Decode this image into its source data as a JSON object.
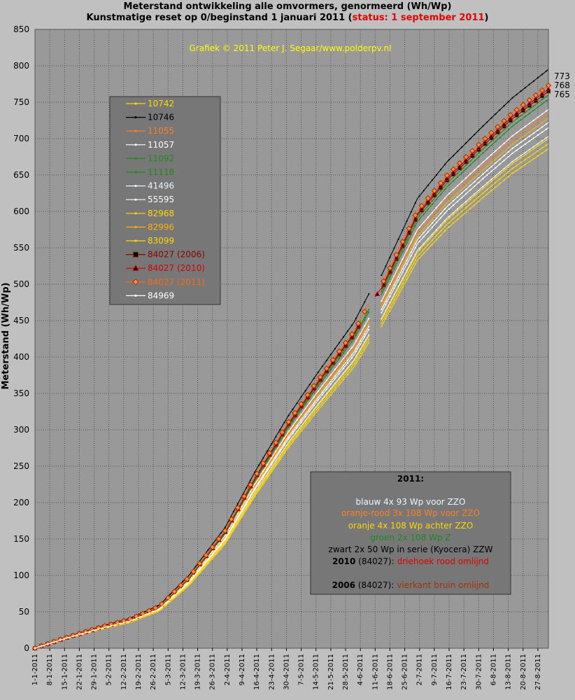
{
  "chart_data": {
    "type": "line",
    "title": "Meterstand ontwikkeling alle omvormers, genormeerd (Wh/Wp)",
    "subtitle_prefix": "Kunstmatige reset op 0/beginstand 1 januari 2011 (",
    "subtitle_status": "status: 1 september 2011",
    "subtitle_suffix": ")",
    "copyright": "Grafiek © 2011 Peter J. Segaar/www.polderpv.nl",
    "ylabel": "Meterstand (Wh/Wp)",
    "ylim": [
      0,
      850
    ],
    "yticks": [
      0,
      50,
      100,
      150,
      200,
      250,
      300,
      350,
      400,
      450,
      500,
      550,
      600,
      650,
      700,
      750,
      800,
      850
    ],
    "grid": true,
    "x_start": "2011-01-01",
    "x_end": "2011-09-01",
    "gap_start": "2011-06-08",
    "gap_end": "2011-06-14",
    "xtick_labels": [
      "1-1-2011",
      "8-1-2011",
      "15-1-2011",
      "22-1-2011",
      "29-1-2011",
      "5-2-2011",
      "12-2-2011",
      "19-2-2011",
      "26-2-2011",
      "5-3-2011",
      "12-3-2011",
      "19-3-2011",
      "26-3-2011",
      "2-4-2011",
      "9-4-2011",
      "16-4-2011",
      "23-4-2011",
      "30-4-2011",
      "7-5-2011",
      "14-5-2011",
      "21-5-2011",
      "28-5-2011",
      "4-6-2011",
      "11-6-2011",
      "18-6-2011",
      "25-6-2011",
      "2-7-2011",
      "9-7-2011",
      "16-7-2011",
      "23-7-2011",
      "30-7-2011",
      "6-8-2011",
      "13-8-2011",
      "20-8-2011",
      "27-8-2011"
    ],
    "profile": {
      "dates": [
        "2011-01-01",
        "2011-01-15",
        "2011-02-01",
        "2011-02-15",
        "2011-03-01",
        "2011-03-15",
        "2011-04-01",
        "2011-04-15",
        "2011-05-01",
        "2011-05-15",
        "2011-06-01",
        "2011-06-08",
        "2011-06-14",
        "2011-07-01",
        "2011-07-15",
        "2011-08-01",
        "2011-08-15",
        "2011-09-01"
      ],
      "values": [
        0,
        14,
        29,
        40,
        58,
        98,
        162,
        236,
        312,
        370,
        437,
        475,
        500,
        603,
        652,
        700,
        738,
        776
      ]
    },
    "series": [
      {
        "name": "10742",
        "color": "#ffd700",
        "marker": "dot",
        "final": 686
      },
      {
        "name": "10746",
        "color": "#000000",
        "marker": "dot",
        "final": 795
      },
      {
        "name": "11055",
        "color": "#ff7f27",
        "marker": "dot",
        "final": 735
      },
      {
        "name": "11057",
        "color": "#ffffff",
        "marker": "dot",
        "final": 740
      },
      {
        "name": "11092",
        "color": "#1e8a1e",
        "marker": "dot",
        "final": 754
      },
      {
        "name": "11118",
        "color": "#1e8a1e",
        "marker": "dot",
        "final": 760
      },
      {
        "name": "41496",
        "color": "#e8f4ff",
        "marker": "dot",
        "final": 703
      },
      {
        "name": "55595",
        "color": "#ffffff",
        "marker": "dot",
        "final": 715
      },
      {
        "name": "82968",
        "color": "#ffd700",
        "marker": "dot",
        "final": 693
      },
      {
        "name": "82996",
        "color": "#ffb000",
        "marker": "dot",
        "final": 728
      },
      {
        "name": "83099",
        "color": "#ffd700",
        "marker": "dot",
        "final": 700
      },
      {
        "name": "84027 (2006)",
        "color": "#8b0000",
        "marker": "square",
        "final": 765
      },
      {
        "name": "84027 (2010)",
        "color": "#d40000",
        "marker": "triangle",
        "final": 768
      },
      {
        "name": "84027 (2011)",
        "color": "#ff6a13",
        "marker": "diamond",
        "final": 773
      },
      {
        "name": "84969",
        "color": "#ffffff",
        "marker": "dot",
        "final": 722
      }
    ],
    "end_labels": [
      {
        "text": "773",
        "value": 773,
        "color": "#ff6a13"
      },
      {
        "text": "768",
        "value": 768,
        "color": "#d40000"
      },
      {
        "text": "765",
        "value": 765,
        "color": "#8b0000"
      }
    ]
  },
  "colors": {
    "plot_background": "#999999",
    "page_background": "#c0c0c0",
    "legend_background": "#777777",
    "copyright": "#ffff00",
    "status": "#e00000"
  },
  "notes": {
    "year": "2011:",
    "blauw": "blauw 4x 93 Wp voor ZZO",
    "oranjerood": "oranje-rood 3x 108 Wp voor ZZO",
    "oranje": "oranje 4x 108 Wp achter ZZO",
    "groen": "groen 2x 108 Wp  Z",
    "zwart": "zwart 2x 50 Wp in serie (Kyocera) ZZW",
    "y2010_year": "2010",
    "y2010_id": " (84027): ",
    "y2010_desc": "driehoek rood omlijnd",
    "y2006_year": "2006",
    "y2006_id": " (84027): ",
    "y2006_desc": "vierkant bruin omlijnd"
  }
}
